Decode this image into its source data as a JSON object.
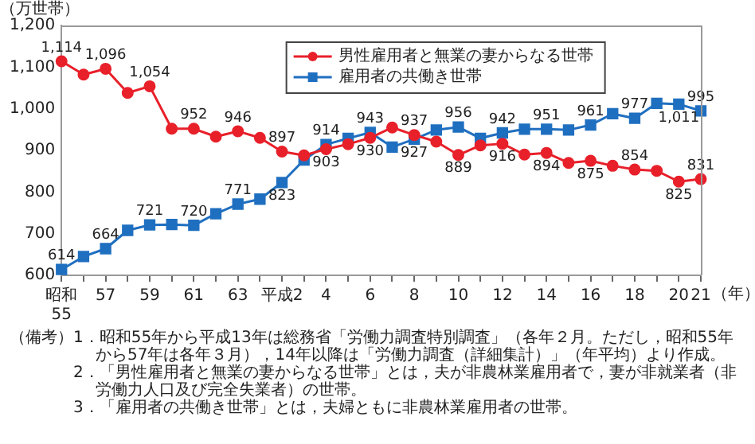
{
  "chart_data": {
    "type": "line",
    "ylabel": "（万世帯）",
    "xlabel": "（年）",
    "categories": [
      "昭和\n55",
      null,
      "57",
      null,
      "59",
      null,
      "61",
      null,
      "63",
      null,
      "平成2",
      null,
      "4",
      null,
      "6",
      null,
      "8",
      null,
      "10",
      null,
      "12",
      null,
      "14",
      null,
      "16",
      null,
      "18",
      null,
      "20",
      "21"
    ],
    "series": [
      {
        "name": "男性雇用者と無業の妻からなる世帯",
        "color": "#e8202a",
        "marker": "circle",
        "values": [
          1114,
          1082,
          1096,
          1038,
          1054,
          952,
          952,
          933,
          946,
          930,
          897,
          888,
          903,
          915,
          930,
          955,
          937,
          921,
          889,
          912,
          916,
          890,
          894,
          870,
          875,
          863,
          854,
          851,
          825,
          831
        ],
        "value_labels": [
          "1,114",
          null,
          "1,096",
          null,
          "1,054",
          null,
          "952",
          null,
          "946",
          null,
          "897",
          null,
          "903",
          null,
          "930",
          null,
          "937",
          null,
          "889",
          null,
          "916",
          null,
          "894",
          null,
          "875",
          null,
          "854",
          null,
          "825",
          "831"
        ]
      },
      {
        "name": "雇用者の共働き世帯",
        "color": "#1f6fc0",
        "marker": "square",
        "values": [
          614,
          645,
          664,
          708,
          721,
          722,
          720,
          748,
          771,
          783,
          823,
          877,
          914,
          929,
          943,
          908,
          927,
          949,
          956,
          929,
          942,
          951,
          951,
          949,
          961,
          988,
          977,
          1013,
          1011,
          995
        ],
        "value_labels": [
          "614",
          null,
          "664",
          null,
          "721",
          null,
          "720",
          null,
          "771",
          null,
          "823",
          null,
          "914",
          null,
          "943",
          null,
          "927",
          null,
          "956",
          null,
          "942",
          null,
          "951",
          null,
          "961",
          null,
          "977",
          null,
          "1,011",
          "995"
        ]
      }
    ],
    "ylim": [
      600,
      1200
    ],
    "yticks": [
      600,
      700,
      800,
      900,
      {
        "value": 1000,
        "label": "1,000"
      },
      {
        "value": 1100,
        "label": "1,100"
      },
      {
        "value": 1200,
        "label": "1,200"
      }
    ],
    "legend": "top",
    "annotations": [
      "（備考）",
      "1．昭和55年から平成13年は総務省「労働力調査特別調査」（各年２月。ただし，昭和55年から57年は各年３月），14年以降は「労働力調査（詳細集計）」（年平均）より作成。",
      "2．「男性雇用者と無業の妻からなる世帯」とは，夫が非農林業雇用者で，妻が非就業者（非労働力人口及び完全失業者）の世帯。",
      "3．「雇用者の共働き世帯」とは，夫婦ともに非農林業雇用者の世帯。"
    ]
  }
}
